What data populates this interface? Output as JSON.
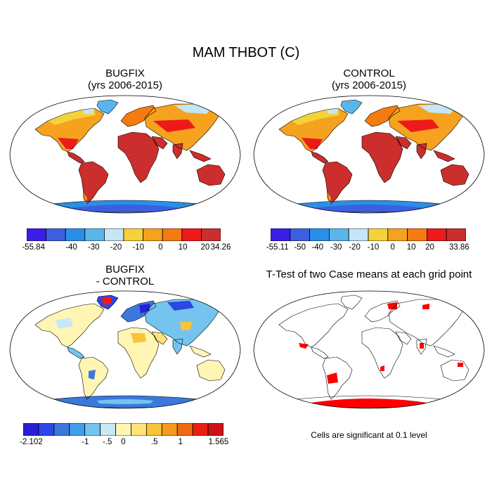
{
  "figure": {
    "title": "MAM THBOT (C)",
    "note": "Cells are significant at 0.1 level"
  },
  "panels": {
    "bugfix": {
      "title_line1": "BUGFIX",
      "title_line2": "(yrs 2006-2015)",
      "colorbar": {
        "colors": [
          "#3b1de8",
          "#3c5fe0",
          "#2a8fe8",
          "#5ab6ea",
          "#c4e6f6",
          "#f5d23a",
          "#f5a21e",
          "#f57a10",
          "#ee1a1a",
          "#cc2d2d"
        ],
        "labels": [
          "-55.84",
          "-40",
          "-30",
          "-20",
          "-10",
          "0",
          "10",
          "20",
          "34.26"
        ]
      }
    },
    "control": {
      "title_line1": "CONTROL",
      "title_line2": "(yrs 2006-2015)",
      "colorbar": {
        "colors": [
          "#3b1de8",
          "#3c5fe0",
          "#2a8fe8",
          "#5ab6ea",
          "#c4e6f6",
          "#f5d23a",
          "#f5a21e",
          "#f57a10",
          "#ee1a1a",
          "#cc2d2d"
        ],
        "labels": [
          "-55.11",
          "-50",
          "-40",
          "-30",
          "-20",
          "-10",
          "0",
          "10",
          "20",
          "33.86"
        ]
      }
    },
    "difference": {
      "title_line1": "BUGFIX",
      "title_line2": "- CONTROL",
      "colorbar": {
        "colors": [
          "#2a1ed8",
          "#2d46e6",
          "#3b78dc",
          "#3fa0ea",
          "#74c4ef",
          "#c8e8f6",
          "#fff6b4",
          "#ffe37a",
          "#f8c43a",
          "#f59a20",
          "#ee6a12",
          "#e8200f",
          "#cc1414"
        ],
        "labels": [
          "-2.102",
          "-1",
          "-.5",
          "0",
          ".5",
          "1",
          "1.565"
        ]
      }
    },
    "ttest": {
      "title": "T-Test of two Case means at each grid point",
      "sig_color": "#ff0000"
    }
  }
}
